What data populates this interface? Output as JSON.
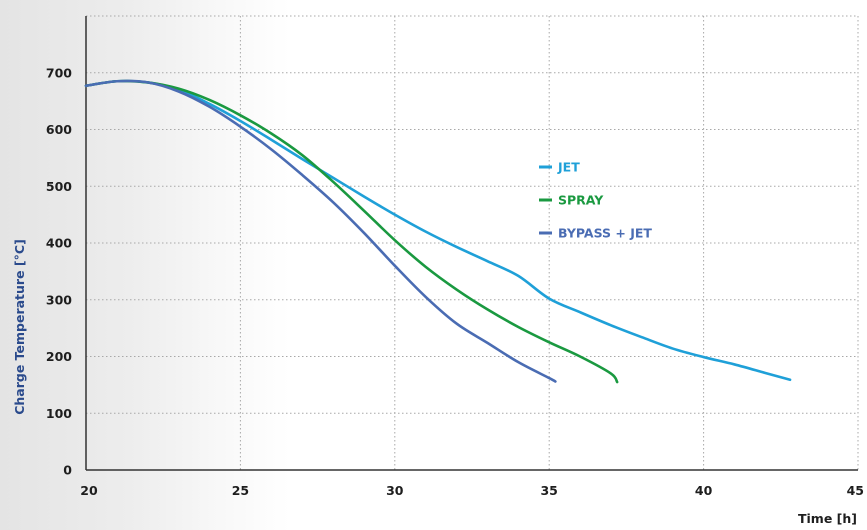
{
  "chart_data": {
    "type": "line",
    "xlabel": "Time [h]",
    "ylabel": "Charge Temperature [°C]",
    "xlim": [
      20,
      45
    ],
    "ylim": [
      0,
      800
    ],
    "x_ticks": [
      20,
      25,
      30,
      35,
      40,
      45
    ],
    "y_ticks": [
      0,
      100,
      200,
      300,
      400,
      500,
      600,
      700
    ],
    "grid": true,
    "legend_position": "center-right",
    "series": [
      {
        "name": "JET",
        "color": "#1fa0d8",
        "points": [
          [
            20,
            677
          ],
          [
            21,
            685
          ],
          [
            22,
            683
          ],
          [
            23,
            670
          ],
          [
            24,
            645
          ],
          [
            25,
            615
          ],
          [
            26,
            582
          ],
          [
            27,
            548
          ],
          [
            28,
            515
          ],
          [
            29,
            482
          ],
          [
            30,
            450
          ],
          [
            31,
            420
          ],
          [
            32,
            393
          ],
          [
            33,
            368
          ],
          [
            34,
            342
          ],
          [
            35,
            302
          ],
          [
            36,
            278
          ],
          [
            37,
            255
          ],
          [
            38,
            234
          ],
          [
            39,
            214
          ],
          [
            40,
            199
          ],
          [
            41,
            186
          ],
          [
            42,
            171
          ],
          [
            42.8,
            159
          ]
        ]
      },
      {
        "name": "SPRAY",
        "color": "#1a9940",
        "points": [
          [
            20,
            677
          ],
          [
            21,
            685
          ],
          [
            22,
            683
          ],
          [
            23,
            672
          ],
          [
            24,
            652
          ],
          [
            25,
            625
          ],
          [
            26,
            593
          ],
          [
            27,
            555
          ],
          [
            28,
            508
          ],
          [
            29,
            457
          ],
          [
            30,
            405
          ],
          [
            31,
            358
          ],
          [
            32,
            318
          ],
          [
            33,
            283
          ],
          [
            34,
            252
          ],
          [
            35,
            225
          ],
          [
            36,
            200
          ],
          [
            37,
            170
          ],
          [
            37.2,
            155
          ]
        ]
      },
      {
        "name": "BYPASS + JET",
        "color": "#4a6cb3",
        "points": [
          [
            20,
            677
          ],
          [
            21,
            685
          ],
          [
            22,
            683
          ],
          [
            23,
            667
          ],
          [
            24,
            640
          ],
          [
            25,
            605
          ],
          [
            26,
            565
          ],
          [
            27,
            520
          ],
          [
            28,
            472
          ],
          [
            29,
            418
          ],
          [
            30,
            360
          ],
          [
            31,
            305
          ],
          [
            32,
            258
          ],
          [
            33,
            224
          ],
          [
            34,
            190
          ],
          [
            35,
            162
          ],
          [
            35.2,
            156
          ]
        ]
      }
    ]
  }
}
